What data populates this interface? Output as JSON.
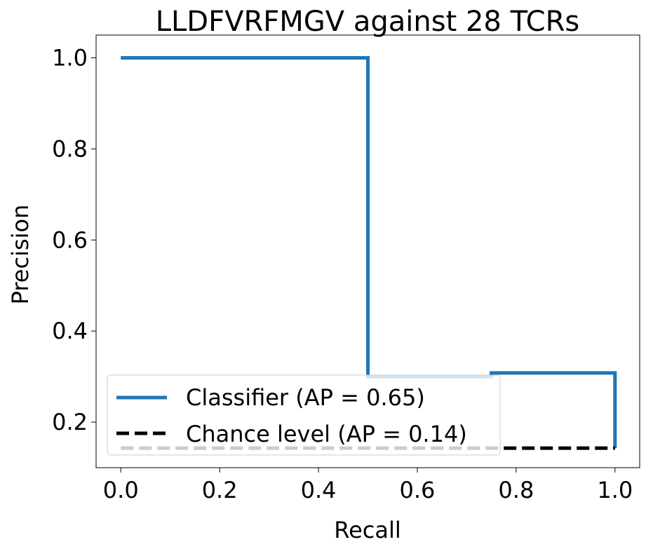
{
  "chart_data": {
    "type": "line",
    "title": "LLDFVRFMGV against 28 TCRs",
    "xlabel": "Recall",
    "ylabel": "Precision",
    "xlim": [
      -0.05,
      1.05
    ],
    "ylim": [
      0.1,
      1.05
    ],
    "xticks": [
      0.0,
      0.2,
      0.4,
      0.6,
      0.8,
      1.0
    ],
    "xtick_labels": [
      "0.0",
      "0.2",
      "0.4",
      "0.6",
      "0.8",
      "1.0"
    ],
    "yticks": [
      0.2,
      0.4,
      0.6,
      0.8,
      1.0
    ],
    "ytick_labels": [
      "0.2",
      "0.4",
      "0.6",
      "0.8",
      "1.0"
    ],
    "grid": false,
    "legend_position": "lower-left",
    "series": [
      {
        "name": "Classifier (AP = 0.65)",
        "style": "step",
        "color": "#1f77b4",
        "x": [
          0.0,
          0.5,
          0.5,
          0.75,
          0.75,
          1.0,
          1.0
        ],
        "y": [
          1.0,
          1.0,
          0.3,
          0.3,
          0.308,
          0.308,
          0.143
        ]
      },
      {
        "name": "Chance level (AP = 0.14)",
        "style": "dashed",
        "color": "#000000",
        "x": [
          0.0,
          1.0
        ],
        "y": [
          0.143,
          0.143
        ]
      }
    ]
  }
}
